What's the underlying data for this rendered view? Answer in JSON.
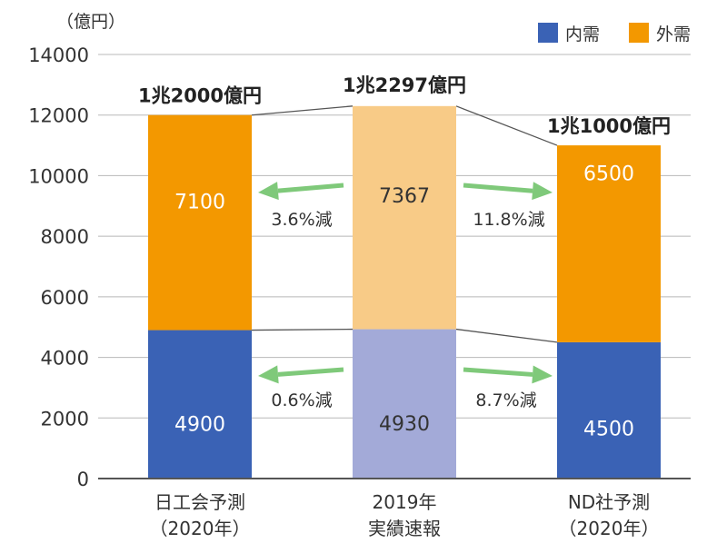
{
  "chart_data": {
    "type": "bar",
    "stacked": true,
    "unit_label": "（億円）",
    "ylim": [
      0,
      14000
    ],
    "yticks": [
      0,
      2000,
      4000,
      6000,
      8000,
      10000,
      12000,
      14000
    ],
    "grid": true,
    "legend_position": "top-right",
    "categories": [
      [
        "日工会予測",
        "（2020年）"
      ],
      [
        "2019年",
        "実績速報"
      ],
      [
        "ND社予測",
        "（2020年）"
      ]
    ],
    "series": [
      {
        "name": "内需",
        "color": "#3a62b5",
        "highlight_color": "#a3aad8",
        "values": [
          4900,
          4930,
          4500
        ]
      },
      {
        "name": "外需",
        "color": "#f39800",
        "highlight_color": "#f8cb87",
        "values": [
          7100,
          7367,
          6500
        ]
      }
    ],
    "highlight_index": 1,
    "totals": [
      "1兆2000億円",
      "1兆2297億円",
      "1兆1000億円"
    ],
    "annotations": {
      "outer": [
        {
          "text": "3.6%減",
          "direction": "left"
        },
        {
          "text": "11.8%減",
          "direction": "right"
        }
      ],
      "inner": [
        {
          "text": "0.6%減",
          "direction": "left"
        },
        {
          "text": "8.7%減",
          "direction": "right"
        }
      ]
    },
    "arrow_color": "#7fc97a"
  }
}
